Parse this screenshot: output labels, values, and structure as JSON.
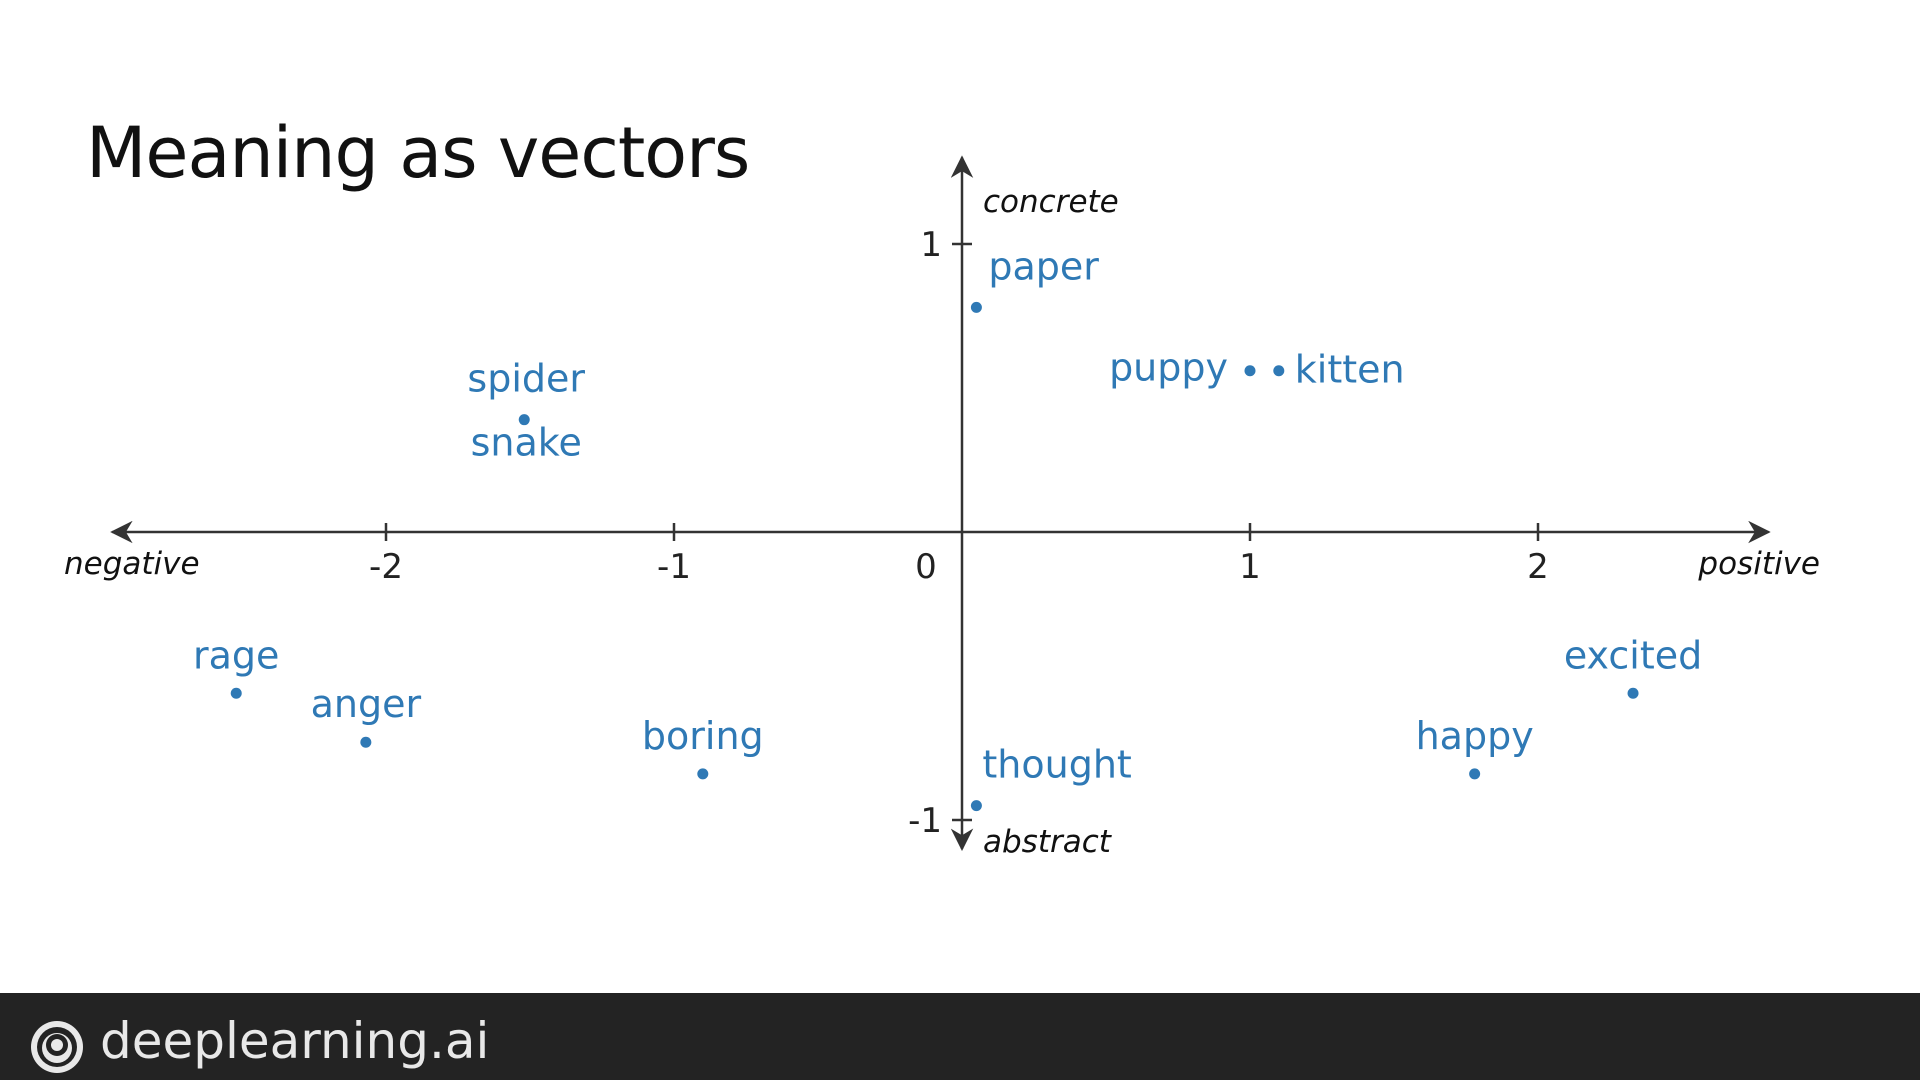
{
  "slide": {
    "title": "Meaning as vectors"
  },
  "footer": {
    "brand": "deeplearning.ai"
  },
  "colors": {
    "point": "#2f79b5",
    "axis": "#333333",
    "footer_bg": "#232323"
  },
  "chart_data": {
    "type": "scatter",
    "title": "Meaning as vectors",
    "xlim": [
      -2.95,
      2.8
    ],
    "ylim": [
      -1.1,
      1.3
    ],
    "x_ticks": [
      -2,
      -1,
      0,
      1,
      2
    ],
    "y_ticks": [
      -1,
      1
    ],
    "x_axis_labels": {
      "negative": "negative",
      "positive": "positive"
    },
    "y_axis_labels": {
      "positive": "concrete",
      "negative": "abstract"
    },
    "grid": false,
    "points": [
      {
        "label": "paper",
        "x": 0.05,
        "y": 0.78
      },
      {
        "label": "puppy",
        "x": 1.0,
        "y": 0.56
      },
      {
        "label": "kitten",
        "x": 1.1,
        "y": 0.56
      },
      {
        "label": "spider",
        "x": -1.52,
        "y": 0.39
      },
      {
        "label": "snake",
        "x": -1.52,
        "y": 0.39
      },
      {
        "label": "rage",
        "x": -2.52,
        "y": -0.56
      },
      {
        "label": "anger",
        "x": -2.07,
        "y": -0.73
      },
      {
        "label": "boring",
        "x": -0.9,
        "y": -0.84
      },
      {
        "label": "thought",
        "x": 0.05,
        "y": -0.95
      },
      {
        "label": "happy",
        "x": 1.78,
        "y": -0.84
      },
      {
        "label": "excited",
        "x": 2.33,
        "y": -0.56
      }
    ]
  }
}
